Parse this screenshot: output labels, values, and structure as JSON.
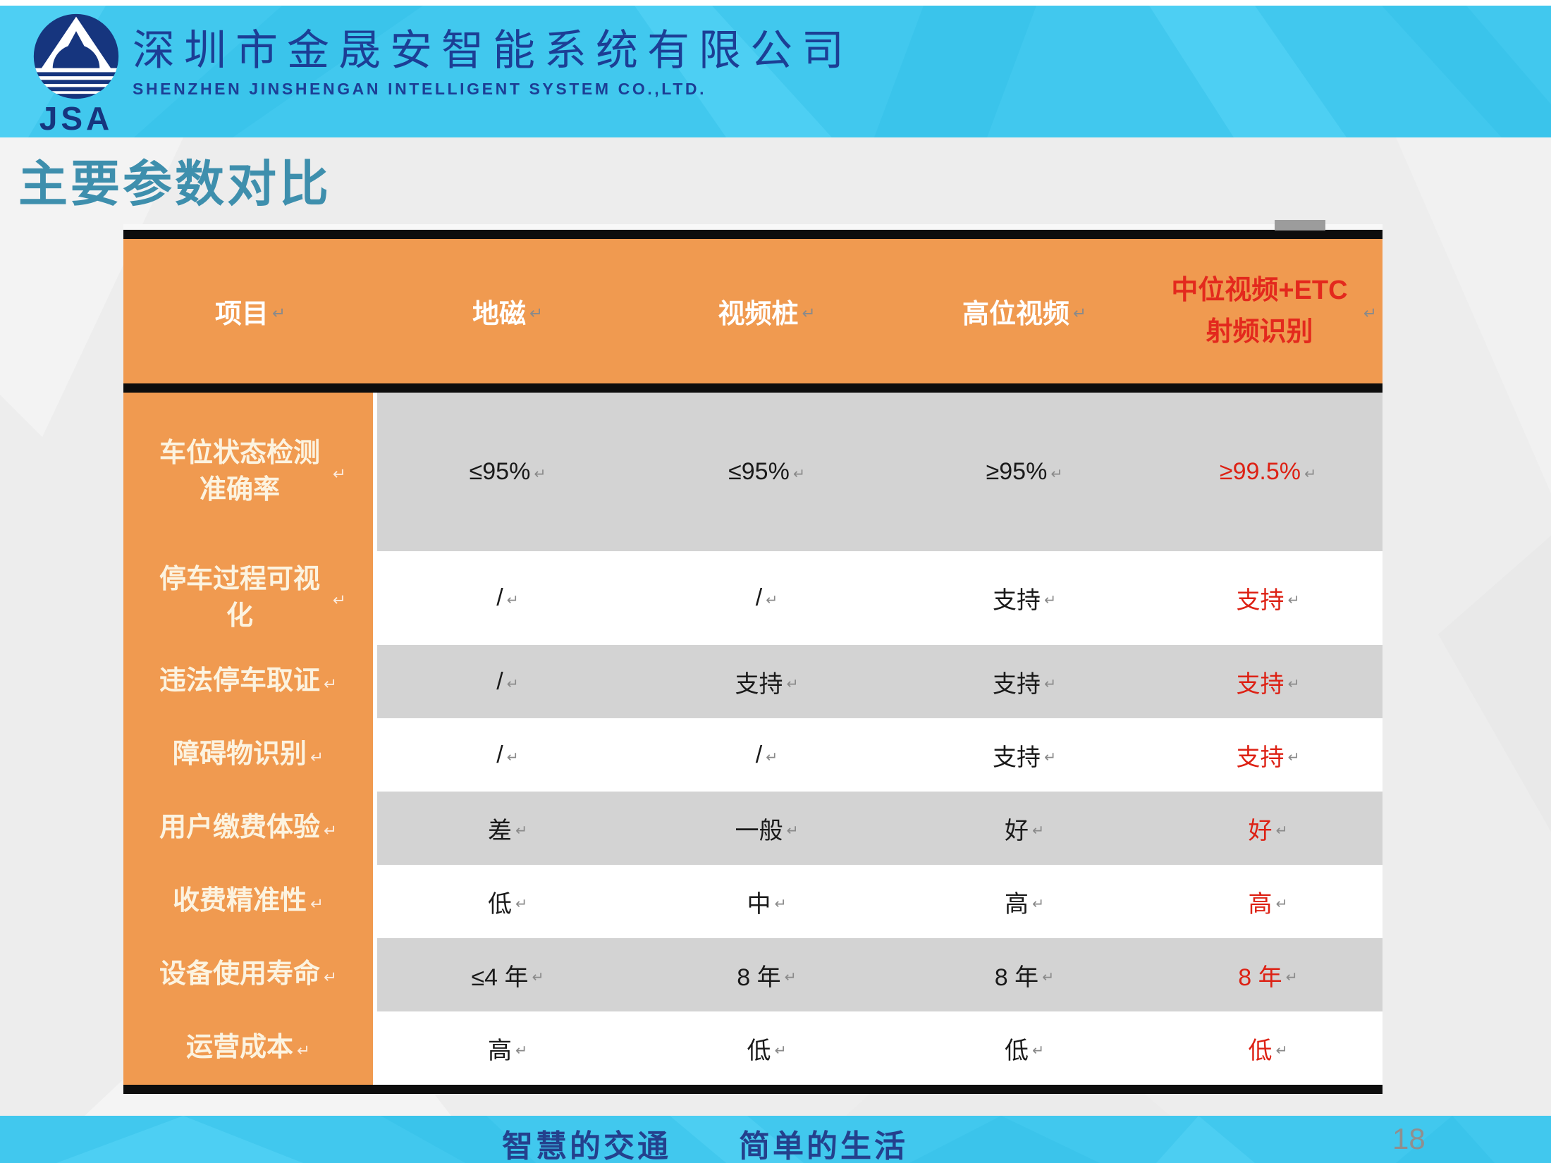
{
  "banner": {
    "logo_text": "JSA",
    "company_name_cn": "深圳市金晟安智能系统有限公司",
    "company_name_en": "SHENZHEN JINSHENGAN INTELLIGENT SYSTEM CO.,LTD."
  },
  "page_title": "主要参数对比",
  "table": {
    "return_mark": "↵",
    "columns": [
      "项目",
      "地磁",
      "视频桩",
      "高位视频",
      "中位视频+ETC 射频识别"
    ],
    "rows": [
      {
        "label": "车位状态检测准确率",
        "values": [
          "≤95%",
          "≤95%",
          "≥95%",
          "≥99.5%"
        ]
      },
      {
        "label": "停车过程可视化",
        "values": [
          "/",
          "/",
          "支持",
          "支持"
        ]
      },
      {
        "label": "违法停车取证",
        "values": [
          "/",
          "支持",
          "支持",
          "支持"
        ]
      },
      {
        "label": "障碍物识别",
        "values": [
          "/",
          "/",
          "支持",
          "支持"
        ]
      },
      {
        "label": "用户缴费体验",
        "values": [
          "差",
          "一般",
          "好",
          "好"
        ]
      },
      {
        "label": "收费精准性",
        "values": [
          "低",
          "中",
          "高",
          "高"
        ]
      },
      {
        "label": "设备使用寿命",
        "values": [
          "≤4 年",
          "8 年",
          "8 年",
          "8 年"
        ]
      },
      {
        "label": "运营成本",
        "values": [
          "高",
          "低",
          "低",
          "低"
        ]
      }
    ]
  },
  "footer": {
    "slogan": "智慧的交通　　简单的生活",
    "page_number": "18"
  },
  "colors": {
    "banner_cyan": "#41C8EE",
    "header_orange": "#F09A50",
    "highlight_red": "#DD2114",
    "header_red": "#E3291D",
    "row_gray": "#D3D3D3",
    "navy_logo": "#16357E",
    "navy_text": "#1C3E95",
    "title_teal": "#3E8FAD",
    "page_number_gray": "#8F8F8F"
  }
}
